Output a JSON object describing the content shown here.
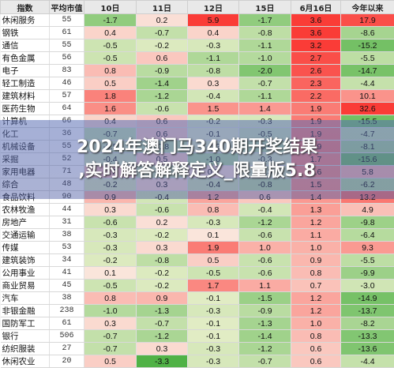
{
  "title_line1": "2024年澳门马340期开奖结果",
  "title_line2": ",实时解答解释定义_限量版5.8",
  "chart_data": {
    "type": "table",
    "columns": [
      "指数",
      "平均市值",
      "10日",
      "11日",
      "12日",
      "15日",
      "6月16日",
      "今年以来"
    ],
    "rows": [
      {
        "name": "休闲服务",
        "pe": "55",
        "values": [
          -1.7,
          0.2,
          5.9,
          -1.7,
          3.6,
          17.9
        ]
      },
      {
        "name": "钢铁",
        "pe": "61",
        "values": [
          0.4,
          -0.7,
          0.4,
          -0.8,
          3.6,
          -8.6
        ]
      },
      {
        "name": "通信",
        "pe": "55",
        "values": [
          -0.5,
          -0.2,
          -0.3,
          -1.1,
          3.2,
          -15.2
        ]
      },
      {
        "name": "有色金属",
        "pe": "56",
        "values": [
          -0.5,
          0.6,
          -1.1,
          -1.0,
          2.7,
          -5.5
        ]
      },
      {
        "name": "电子",
        "pe": "83",
        "values": [
          0.8,
          -0.9,
          -0.8,
          -2.0,
          2.6,
          -14.7
        ]
      },
      {
        "name": "轻工制造",
        "pe": "46",
        "values": [
          0.5,
          -1.4,
          0.3,
          -0.7,
          2.3,
          -4.4
        ]
      },
      {
        "name": "建筑材料",
        "pe": "57",
        "values": [
          1.8,
          -1.2,
          -0.4,
          -1.1,
          2.2,
          10.1
        ]
      },
      {
        "name": "医药生物",
        "pe": "64",
        "values": [
          1.6,
          -0.6,
          1.5,
          1.4,
          1.9,
          32.6
        ]
      },
      {
        "name": "计算机",
        "pe": "66",
        "values": [
          0.4,
          0.6,
          -0.2,
          -0.3,
          1.9,
          -15.5
        ]
      },
      {
        "name": "化工",
        "pe": "36",
        "values": [
          -0.7,
          0.6,
          -0.1,
          -0.5,
          1.9,
          -4.7
        ]
      },
      {
        "name": "机械设备",
        "pe": "55",
        "values": [
          -0.5,
          -0.8,
          -0.2,
          -0.9,
          1.9,
          -8.1
        ]
      },
      {
        "name": "采掘",
        "pe": "52",
        "values": [
          -0.4,
          0.5,
          -1.0,
          -0.3,
          1.7,
          -15.6
        ]
      },
      {
        "name": "家用电器",
        "pe": "71",
        "values": [
          0.7,
          -0.5,
          0.2,
          -0.3,
          1.6,
          5.8
        ]
      },
      {
        "name": "综合",
        "pe": "48",
        "values": [
          -0.2,
          0.3,
          -0.4,
          -0.8,
          1.5,
          -6.2
        ]
      },
      {
        "name": "食品饮料",
        "pe": "90",
        "values": [
          0.9,
          -0.4,
          1.2,
          0.6,
          1.4,
          13.2
        ]
      },
      {
        "name": "农林牧渔",
        "pe": "44",
        "values": [
          0.3,
          -0.6,
          0.8,
          -0.4,
          1.3,
          4.9
        ]
      },
      {
        "name": "房地产",
        "pe": "31",
        "values": [
          -0.6,
          0.2,
          -0.3,
          -1.2,
          1.2,
          -9.8
        ]
      },
      {
        "name": "交通运输",
        "pe": "38",
        "values": [
          -0.3,
          -0.2,
          0.1,
          -0.6,
          1.1,
          -6.4
        ]
      },
      {
        "name": "传媒",
        "pe": "53",
        "values": [
          -0.3,
          0.3,
          1.9,
          1.0,
          1.0,
          9.3
        ]
      },
      {
        "name": "建筑装饰",
        "pe": "34",
        "values": [
          -0.2,
          -0.8,
          0.5,
          -0.6,
          0.9,
          -5.5
        ]
      },
      {
        "name": "公用事业",
        "pe": "41",
        "values": [
          0.1,
          -0.2,
          -0.5,
          -0.6,
          0.8,
          -9.9
        ]
      },
      {
        "name": "商业贸易",
        "pe": "45",
        "values": [
          -0.5,
          -0.2,
          1.7,
          1.1,
          0.7,
          -3.0
        ]
      },
      {
        "name": "汽车",
        "pe": "38",
        "values": [
          0.8,
          0.9,
          -0.1,
          -1.5,
          1.2,
          -14.9
        ]
      },
      {
        "name": "非银金融",
        "pe": "238",
        "values": [
          -1.0,
          -1.3,
          -0.3,
          -0.9,
          1.2,
          -13.7
        ]
      },
      {
        "name": "国防军工",
        "pe": "61",
        "values": [
          0.3,
          -0.7,
          -0.1,
          -1.3,
          1.0,
          -8.2
        ]
      },
      {
        "name": "银行",
        "pe": "506",
        "values": [
          -0.7,
          -1.2,
          -0.1,
          -1.4,
          0.8,
          -13.3
        ]
      },
      {
        "name": "纺织服装",
        "pe": "27",
        "values": [
          -0.7,
          0.3,
          -0.3,
          -1.2,
          0.6,
          -13.6
        ]
      },
      {
        "name": "休闲农业",
        "pe": "20",
        "values": [
          0.5,
          -3.3,
          -0.3,
          -0.7,
          0.6,
          -4.4
        ]
      }
    ]
  }
}
